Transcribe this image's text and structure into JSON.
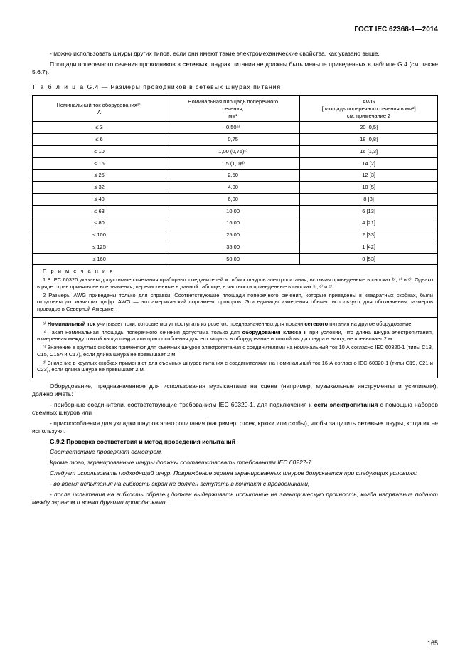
{
  "doc_header": "ГОСТ IEC 62368-1—2014",
  "intro": {
    "p1": "- можно использовать шнуры других типов, если они имеют такие электромеханические свойства, как указано выше.",
    "p2_pre": "Площади поперечного сечения проводников в ",
    "p2_bold": "сетевых",
    "p2_post": " шнурах питания не должны быть меньше приведенных в таблице G.4 (см. также 5.6.7)."
  },
  "table_label": "Т а б л и ц а",
  "table_caption": "  G.4 — Размеры проводников в сетевых шнурах питания",
  "table": {
    "h1": "Номинальный ток оборудованияᵃ⁾,\nА",
    "h2": "Номинальная площадь поперечного\nсечения,\nмм²",
    "h3": "AWG\n[площадь поперечного сечения в мм²]\nсм. примечание 2",
    "rows": [
      {
        "c1": "≤ 3",
        "c2": "0,50ᵇ⁾",
        "c3": "20 [0,5]"
      },
      {
        "c1": "≤ 6",
        "c2": "0,75",
        "c3": "18 [0,8]"
      },
      {
        "c1": "≤ 10",
        "c2": "1,00 (0,75)ᶜ⁾",
        "c3": "16 [1,3]"
      },
      {
        "c1": "≤ 16",
        "c2": "1,5 (1,0)ᵈ⁾",
        "c3": "14 [2]"
      },
      {
        "c1": "≤ 25",
        "c2": "2,50",
        "c3": "12 [3]"
      },
      {
        "c1": "≤ 32",
        "c2": "4,00",
        "c3": "10 [5]"
      },
      {
        "c1": "≤ 40",
        "c2": "6,00",
        "c3": "8 [8]"
      },
      {
        "c1": "≤ 63",
        "c2": "10,00",
        "c3": "6 [13]"
      },
      {
        "c1": "≤ 80",
        "c2": "16,00",
        "c3": "4 [21]"
      },
      {
        "c1": "≤ 100",
        "c2": "25,00",
        "c3": "2 [33]"
      },
      {
        "c1": "≤ 125",
        "c2": "35,00",
        "c3": "1 [42]"
      },
      {
        "c1": "≤ 160",
        "c2": "50,00",
        "c3": "0 [53]"
      }
    ]
  },
  "notes": {
    "title": "П р и м е ч а н и я",
    "n1": "1 В IEC 60320 указаны допустимые сочетания приборных соединителей и гибких шнуров электропитания, включая приведенные в сносках ᵇ⁾, ᶜ⁾ и ᵈ⁾. Однако в ряде стран приняты не все значения, перечисленные в данной таблице, в частности приведенные в сносках ᵇ⁾, ᵈ⁾ и ᵉ⁾.",
    "n2": "2 Размеры AWG приведены только для справки. Соответствующие площади поперечного сечения, которые приведены в квадратных скобках, были округлены до значащих цифр. AWG — это американский сортамент проводов. Эти единицы измерения обычно используют для обозначения размеров проводов в Северной Америке."
  },
  "footnotes": {
    "a_pre": "ᵃ⁾ ",
    "a_bold": "Номинальный ток",
    "a_post": " учитывает токи, которые могут поступать из розеток, предназначенных для подачи ",
    "a_bold2": "сетевого",
    "a_post2": " питания на другое оборудование.",
    "b_pre": "ᵇ⁾ Такая номинальная площадь поперечного сечения допустима только для ",
    "b_bold": "оборудования класса II",
    "b_post": " при условии, что длина шнура электропитания, измеренная между точкой ввода шнура или приспособления для его защиты в оборудование и точкой ввода шнура в вилку, не превышает 2 м.",
    "c": "ᶜ⁾ Значение в круглых скобках применяют для съемных шнуров электропитания с соединителями на номинальный ток 10 А согласно IEC 60320-1 (типы C13, C15, C15A и C17), если длина шнура не превышает 2 м.",
    "d": "ᵈ⁾ Значение в круглых скобках применяют для съемных шнуров питания с соединителями на номинальный ток 16 А согласно IEC 60320-1 (типы C19, C21 и C23), если длина шнура не превышает 2 м."
  },
  "body2": {
    "p1": "Оборудование, предназначенное для использования музыкантами на сцене (например, музыкальные инструменты и усилители), должно иметь:",
    "p2_pre": "- приборные соединители, соответствующие требованиям IEC 60320-1, для подключения к ",
    "p2_bold": "сети электропитания",
    "p2_post": " с помощью наборов съемных шнуров или",
    "p3_pre": "- приспособления для укладки шнуров электропитания (например, отсек, крюки или скобы), чтобы защитить ",
    "p3_bold": "сетевые",
    "p3_post": " шнуры, когда их не используют.",
    "heading": "G.9.2 Проверка соответствия и метод проведения испытаний",
    "p4": "Соответствие проверяют осмотром.",
    "p5": "Кроме того, экранированные шнуры должны соответствовать требованиям IEC 60227-7.",
    "p6": "Следует использовать подходящий шнур. Повреждение экрана экранированных шнуров допускается при следующих условиях:",
    "p7": "- во время испытания на гибкость экран не должен вступать в контакт с проводниками;",
    "p8": "- после испытания на гибкость образец должен выдерживать испытание на электрическую прочность, когда напряжение подают между экраном и всеми другими проводниками."
  },
  "page_number": "165"
}
